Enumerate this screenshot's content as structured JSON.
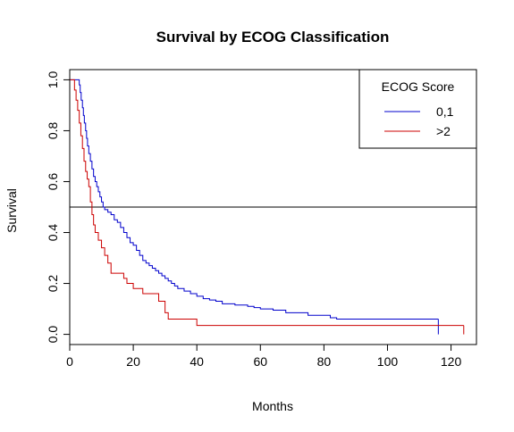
{
  "chart_data": {
    "type": "line",
    "title": "Survival by ECOG Classification",
    "xlabel": "Months",
    "ylabel": "Survival",
    "xlim": [
      0,
      128
    ],
    "ylim": [
      -0.04,
      1.04
    ],
    "xticks": [
      0,
      20,
      40,
      60,
      80,
      100,
      120
    ],
    "xtick_labels": [
      "0",
      "20",
      "40",
      "60",
      "80",
      "100",
      "120"
    ],
    "yticks": [
      0.0,
      0.2,
      0.4,
      0.6,
      0.8,
      1.0
    ],
    "ytick_labels": [
      "0.0",
      "0.2",
      "0.4",
      "0.6",
      "0.8",
      "1.0"
    ],
    "reference_line_y": 0.5,
    "legend": {
      "title": "ECOG Score",
      "position": "top-right",
      "entries": [
        {
          "label": "0,1",
          "color": "#0000cc"
        },
        {
          "label": ">2",
          "color": "#cc0000"
        }
      ]
    },
    "series": [
      {
        "label": "0,1",
        "color": "#0000cc",
        "step": true,
        "censor_at_end": true,
        "points": [
          [
            0,
            1.0
          ],
          [
            2.5,
            1.0
          ],
          [
            3,
            0.98
          ],
          [
            3.3,
            0.95
          ],
          [
            3.6,
            0.92
          ],
          [
            4,
            0.89
          ],
          [
            4.3,
            0.86
          ],
          [
            4.6,
            0.83
          ],
          [
            5,
            0.8
          ],
          [
            5.3,
            0.77
          ],
          [
            5.6,
            0.74
          ],
          [
            6,
            0.71
          ],
          [
            6.5,
            0.68
          ],
          [
            7,
            0.65
          ],
          [
            7.5,
            0.62
          ],
          [
            8,
            0.6
          ],
          [
            8.5,
            0.58
          ],
          [
            9,
            0.56
          ],
          [
            9.5,
            0.54
          ],
          [
            10,
            0.52
          ],
          [
            10.5,
            0.5
          ],
          [
            11,
            0.49
          ],
          [
            12,
            0.48
          ],
          [
            13,
            0.47
          ],
          [
            14,
            0.45
          ],
          [
            15,
            0.44
          ],
          [
            16,
            0.42
          ],
          [
            17,
            0.4
          ],
          [
            18,
            0.38
          ],
          [
            19,
            0.36
          ],
          [
            20,
            0.35
          ],
          [
            21,
            0.33
          ],
          [
            22,
            0.31
          ],
          [
            23,
            0.29
          ],
          [
            24,
            0.28
          ],
          [
            25,
            0.27
          ],
          [
            26,
            0.26
          ],
          [
            27,
            0.25
          ],
          [
            28,
            0.24
          ],
          [
            29,
            0.23
          ],
          [
            30,
            0.22
          ],
          [
            31,
            0.21
          ],
          [
            32,
            0.2
          ],
          [
            33,
            0.19
          ],
          [
            34,
            0.18
          ],
          [
            36,
            0.17
          ],
          [
            38,
            0.16
          ],
          [
            40,
            0.15
          ],
          [
            42,
            0.14
          ],
          [
            44,
            0.135
          ],
          [
            46,
            0.13
          ],
          [
            48,
            0.12
          ],
          [
            52,
            0.115
          ],
          [
            56,
            0.11
          ],
          [
            58,
            0.105
          ],
          [
            60,
            0.1
          ],
          [
            64,
            0.095
          ],
          [
            68,
            0.085
          ],
          [
            75,
            0.075
          ],
          [
            82,
            0.065
          ],
          [
            84,
            0.06
          ],
          [
            116,
            0.06
          ]
        ]
      },
      {
        "label": ">2",
        "color": "#cc0000",
        "step": true,
        "censor_at_end": true,
        "points": [
          [
            0,
            1.0
          ],
          [
            1.5,
            0.96
          ],
          [
            2,
            0.92
          ],
          [
            2.5,
            0.88
          ],
          [
            3,
            0.83
          ],
          [
            3.5,
            0.78
          ],
          [
            4,
            0.73
          ],
          [
            4.5,
            0.68
          ],
          [
            5,
            0.64
          ],
          [
            5.5,
            0.61
          ],
          [
            6,
            0.58
          ],
          [
            6.5,
            0.52
          ],
          [
            7,
            0.47
          ],
          [
            7.5,
            0.43
          ],
          [
            8,
            0.4
          ],
          [
            9,
            0.37
          ],
          [
            10,
            0.34
          ],
          [
            11,
            0.31
          ],
          [
            12,
            0.28
          ],
          [
            13,
            0.24
          ],
          [
            17,
            0.22
          ],
          [
            18,
            0.2
          ],
          [
            20,
            0.18
          ],
          [
            23,
            0.16
          ],
          [
            28,
            0.13
          ],
          [
            30,
            0.085
          ],
          [
            31,
            0.06
          ],
          [
            40,
            0.035
          ],
          [
            124,
            0.035
          ]
        ]
      }
    ]
  }
}
